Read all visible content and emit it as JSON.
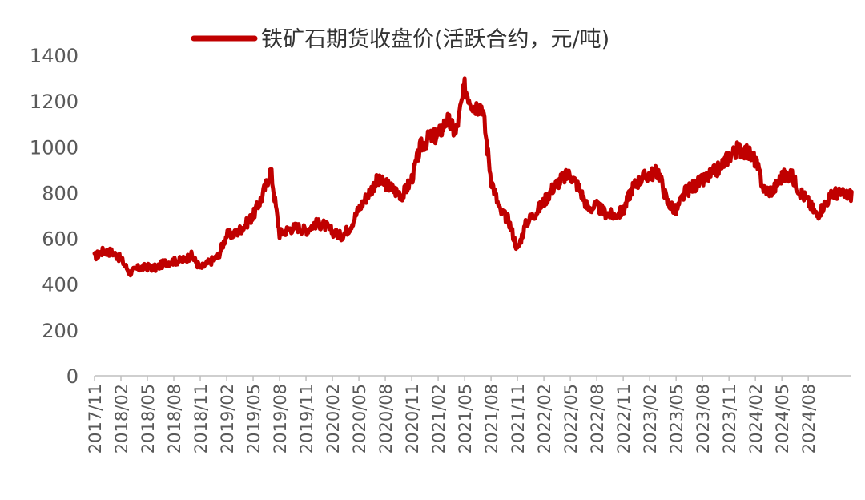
{
  "chart_data": {
    "type": "line",
    "title": "",
    "xlabel": "",
    "ylabel": "",
    "legend_position": "top-center",
    "grid": false,
    "ylim": [
      0,
      1400
    ],
    "y_ticks": [
      "0",
      "200",
      "400",
      "600",
      "800",
      "1000",
      "1200",
      "1400"
    ],
    "x_tick_labels": [
      "2017/11",
      "2018/02",
      "2018/05",
      "2018/08",
      "2018/11",
      "2019/02",
      "2019/05",
      "2019/08",
      "2019/11",
      "2020/02",
      "2020/05",
      "2020/08",
      "2020/11",
      "2021/02",
      "2021/05",
      "2021/08",
      "2021/11",
      "2022/02",
      "2022/05",
      "2022/08",
      "2022/11",
      "2023/02",
      "2023/05",
      "2023/08",
      "2023/11",
      "2024/02",
      "2024/05",
      "2024/08"
    ],
    "series": [
      {
        "name": "铁矿石期货收盘价(活跃合约，元/吨)",
        "color": "#c00000",
        "x": [
          "2017/11",
          "2017/12",
          "2018/01",
          "2018/02",
          "2018/03",
          "2018/04",
          "2018/05",
          "2018/06",
          "2018/07",
          "2018/08",
          "2018/09",
          "2018/10",
          "2018/11",
          "2018/12",
          "2019/01",
          "2019/02",
          "2019/03",
          "2019/04",
          "2019/05",
          "2019/06",
          "2019/07",
          "2019/08",
          "2019/09",
          "2019/10",
          "2019/11",
          "2019/12",
          "2020/01",
          "2020/02",
          "2020/03",
          "2020/04",
          "2020/05",
          "2020/06",
          "2020/07",
          "2020/08",
          "2020/09",
          "2020/10",
          "2020/11",
          "2020/12",
          "2021/01",
          "2021/02",
          "2021/03",
          "2021/04",
          "2021/05",
          "2021/06",
          "2021/07",
          "2021/08",
          "2021/09",
          "2021/10",
          "2021/11",
          "2021/12",
          "2022/01",
          "2022/02",
          "2022/03",
          "2022/04",
          "2022/05",
          "2022/06",
          "2022/07",
          "2022/08",
          "2022/09",
          "2022/10",
          "2022/11",
          "2022/12",
          "2023/01",
          "2023/02",
          "2023/03",
          "2023/04",
          "2023/05",
          "2023/06",
          "2023/07",
          "2023/08",
          "2023/09",
          "2023/10",
          "2023/11",
          "2023/12",
          "2024/01",
          "2024/02",
          "2024/03",
          "2024/04",
          "2024/05",
          "2024/06",
          "2024/07",
          "2024/08",
          "2024/09",
          "2024/10",
          "2024/11",
          "2024/12"
        ],
        "values": [
          520,
          545,
          540,
          510,
          450,
          470,
          475,
          470,
          495,
          500,
          505,
          525,
          470,
          495,
          520,
          615,
          620,
          655,
          700,
          780,
          900,
          620,
          640,
          650,
          635,
          665,
          660,
          630,
          610,
          650,
          730,
          790,
          850,
          840,
          810,
          790,
          860,
          1000,
          1040,
          1050,
          1120,
          1060,
          1260,
          1180,
          1180,
          860,
          720,
          680,
          550,
          670,
          710,
          760,
          820,
          860,
          880,
          820,
          730,
          740,
          710,
          700,
          720,
          820,
          860,
          880,
          890,
          760,
          720,
          800,
          830,
          850,
          880,
          910,
          960,
          990,
          980,
          940,
          810,
          810,
          870,
          880,
          810,
          760,
          700,
          760,
          800,
          790
        ]
      }
    ]
  }
}
